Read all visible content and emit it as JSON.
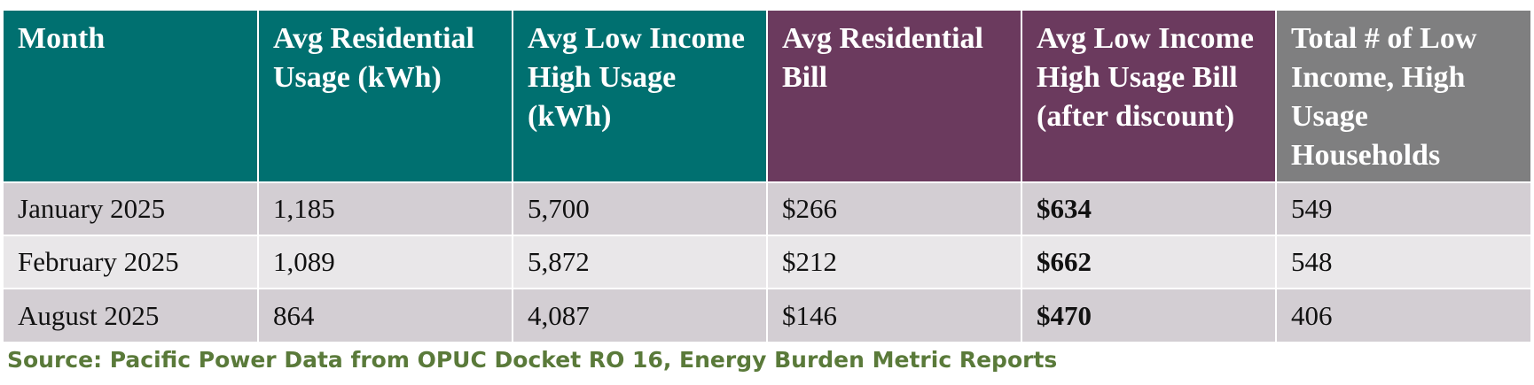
{
  "table": {
    "headers": [
      "Month",
      "Avg Residential Usage (kWh)",
      "Avg Low Income High Usage (kWh)",
      "Avg Residential Bill",
      "Avg Low Income High Usage Bill (after discount)",
      "Total # of Low Income, High Usage Households"
    ],
    "header_colors": [
      "#007070",
      "#007070",
      "#007070",
      "#6b3a5e",
      "#6b3a5e",
      "#7f7f80"
    ],
    "rows": [
      [
        "January 2025",
        "1,185",
        "5,700",
        "$266",
        "$634",
        "549"
      ],
      [
        "February 2025",
        "1,089",
        "5,872",
        "$212",
        "$662",
        "548"
      ],
      [
        "August 2025",
        "864",
        "4,087",
        "$146",
        "$470",
        "406"
      ]
    ]
  },
  "source": "Source: Pacific Power Data from OPUC Docket RO 16, Energy Burden Metric Reports"
}
